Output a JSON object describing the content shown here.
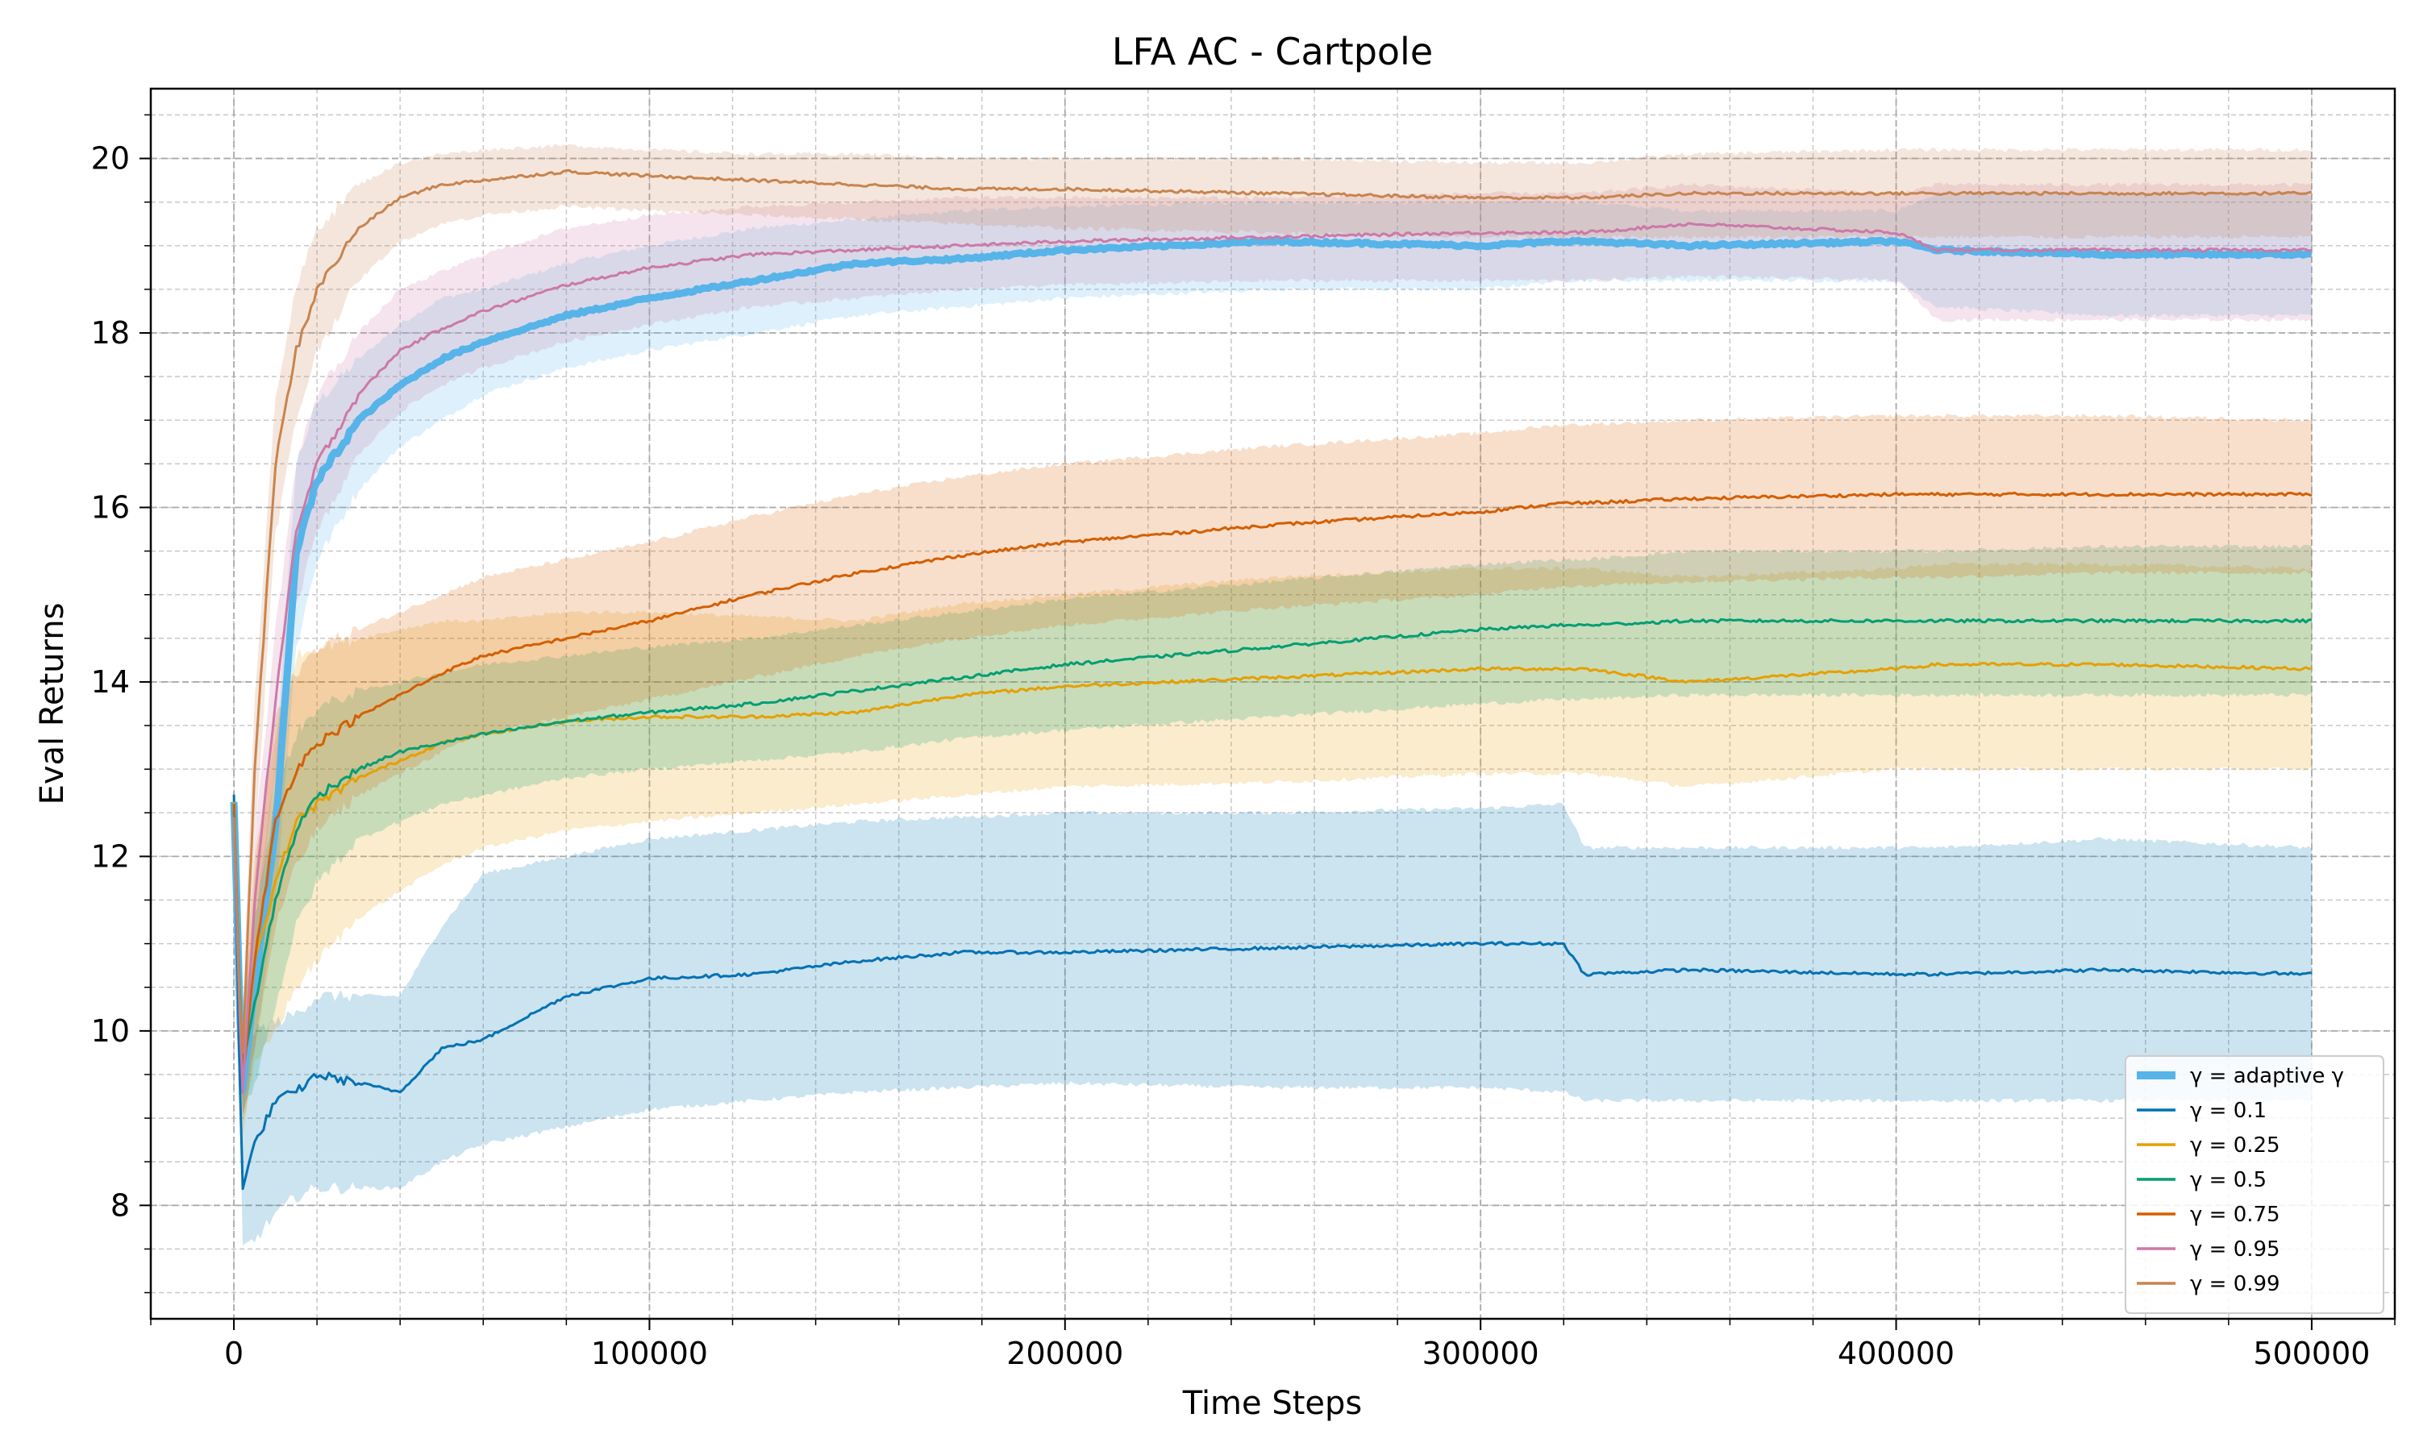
{
  "chart_data": {
    "type": "line",
    "title": "LFA AC - Cartpole",
    "xlabel": "Time Steps",
    "ylabel": "Eval Returns",
    "xlim": [
      -20000,
      520000
    ],
    "ylim": [
      6.7,
      20.8
    ],
    "xticks": [
      0,
      100000,
      200000,
      300000,
      400000,
      500000
    ],
    "xtick_labels": [
      "0",
      "100000",
      "200000",
      "300000",
      "400000",
      "500000"
    ],
    "yticks": [
      8,
      10,
      12,
      14,
      16,
      18,
      20
    ],
    "ytick_labels": [
      "8",
      "10",
      "12",
      "14",
      "16",
      "18",
      "20"
    ],
    "grid": true,
    "legend_position": "lower-right",
    "x": [
      0,
      2000,
      5000,
      10000,
      15000,
      20000,
      30000,
      40000,
      50000,
      60000,
      80000,
      100000,
      125000,
      150000,
      175000,
      200000,
      250000,
      300000,
      320000,
      325000,
      350000,
      400000,
      410000,
      450000,
      500000
    ],
    "series": [
      {
        "name": "γ = adaptive γ",
        "color": "#56b4e9",
        "emphasis": true,
        "values": [
          12.6,
          9.3,
          10.5,
          12.3,
          15.5,
          16.3,
          17.0,
          17.4,
          17.7,
          17.9,
          18.2,
          18.4,
          18.6,
          18.8,
          18.85,
          18.95,
          19.05,
          19.0,
          19.05,
          19.05,
          19.0,
          19.05,
          18.95,
          18.9,
          18.9
        ],
        "lower": [
          12.3,
          9.0,
          9.8,
          11.5,
          14.4,
          15.4,
          16.2,
          16.7,
          17.0,
          17.3,
          17.6,
          17.8,
          18.0,
          18.2,
          18.3,
          18.4,
          18.5,
          18.5,
          18.6,
          18.6,
          18.6,
          18.6,
          18.3,
          18.2,
          18.2
        ],
        "upper": [
          12.9,
          9.6,
          11.2,
          13.1,
          16.5,
          17.2,
          17.7,
          18.1,
          18.4,
          18.5,
          18.8,
          19.0,
          19.2,
          19.3,
          19.4,
          19.45,
          19.5,
          19.5,
          19.5,
          19.5,
          19.4,
          19.4,
          19.6,
          19.6,
          19.6
        ]
      },
      {
        "name": "γ = 0.1",
        "color": "#0072b2",
        "values": [
          12.7,
          8.2,
          8.7,
          9.2,
          9.3,
          9.5,
          9.4,
          9.3,
          9.8,
          9.9,
          10.4,
          10.6,
          10.65,
          10.8,
          10.9,
          10.9,
          10.95,
          11.0,
          11.0,
          10.65,
          10.7,
          10.65,
          10.65,
          10.7,
          10.65
        ],
        "lower": [
          12.5,
          7.5,
          7.6,
          7.9,
          8.1,
          8.2,
          8.2,
          8.2,
          8.5,
          8.7,
          8.9,
          9.1,
          9.2,
          9.3,
          9.35,
          9.4,
          9.35,
          9.35,
          9.3,
          9.2,
          9.2,
          9.2,
          9.2,
          9.2,
          9.2
        ],
        "upper": [
          12.9,
          9.5,
          10.0,
          10.1,
          10.2,
          10.4,
          10.4,
          10.4,
          11.2,
          11.8,
          12.0,
          12.2,
          12.3,
          12.4,
          12.45,
          12.5,
          12.5,
          12.55,
          12.6,
          12.1,
          12.1,
          12.1,
          12.1,
          12.2,
          12.1
        ]
      },
      {
        "name": "γ = 0.25",
        "color": "#e69f00",
        "values": [
          12.6,
          9.5,
          10.8,
          11.7,
          12.4,
          12.6,
          12.9,
          13.1,
          13.3,
          13.4,
          13.55,
          13.6,
          13.6,
          13.65,
          13.85,
          13.95,
          14.05,
          14.15,
          14.15,
          14.15,
          14.0,
          14.15,
          14.2,
          14.2,
          14.15
        ],
        "lower": [
          12.4,
          8.8,
          9.6,
          10.0,
          10.5,
          10.8,
          11.3,
          11.6,
          11.9,
          12.1,
          12.3,
          12.4,
          12.5,
          12.6,
          12.7,
          12.8,
          12.85,
          12.95,
          12.95,
          12.95,
          12.8,
          13.0,
          13.0,
          13.0,
          13.0
        ],
        "upper": [
          12.8,
          10.2,
          12.0,
          13.4,
          14.3,
          14.4,
          14.5,
          14.6,
          14.7,
          14.7,
          14.8,
          14.8,
          14.75,
          14.7,
          14.9,
          15.0,
          15.2,
          15.3,
          15.3,
          15.3,
          15.2,
          15.3,
          15.35,
          15.35,
          15.3
        ]
      },
      {
        "name": "γ = 0.5",
        "color": "#009e73",
        "values": [
          12.5,
          9.6,
          10.3,
          11.5,
          12.3,
          12.7,
          13.0,
          13.2,
          13.3,
          13.4,
          13.55,
          13.65,
          13.75,
          13.9,
          14.05,
          14.2,
          14.4,
          14.6,
          14.65,
          14.65,
          14.7,
          14.7,
          14.7,
          14.7,
          14.7
        ],
        "lower": [
          12.3,
          9.1,
          9.4,
          10.3,
          11.2,
          11.7,
          12.2,
          12.4,
          12.6,
          12.7,
          12.9,
          13.0,
          13.1,
          13.2,
          13.35,
          13.45,
          13.6,
          13.75,
          13.8,
          13.8,
          13.85,
          13.85,
          13.85,
          13.85,
          13.85
        ],
        "upper": [
          12.7,
          10.1,
          11.3,
          12.7,
          13.4,
          13.7,
          13.9,
          14.0,
          14.1,
          14.2,
          14.3,
          14.4,
          14.5,
          14.65,
          14.8,
          14.95,
          15.15,
          15.35,
          15.4,
          15.4,
          15.5,
          15.5,
          15.5,
          15.55,
          15.55
        ]
      },
      {
        "name": "γ = 0.75",
        "color": "#d55e00",
        "values": [
          12.6,
          9.4,
          10.8,
          12.4,
          13.0,
          13.3,
          13.6,
          13.85,
          14.1,
          14.3,
          14.5,
          14.7,
          15.0,
          15.25,
          15.45,
          15.6,
          15.8,
          15.95,
          16.05,
          16.05,
          16.1,
          16.15,
          16.15,
          16.15,
          16.15
        ],
        "lower": [
          12.4,
          8.9,
          9.8,
          11.2,
          11.9,
          12.3,
          12.7,
          12.95,
          13.2,
          13.4,
          13.6,
          13.8,
          14.05,
          14.3,
          14.5,
          14.65,
          14.85,
          15.0,
          15.1,
          15.1,
          15.15,
          15.2,
          15.2,
          15.25,
          15.25
        ],
        "upper": [
          12.8,
          9.9,
          11.8,
          13.6,
          14.1,
          14.4,
          14.6,
          14.8,
          15.0,
          15.2,
          15.4,
          15.6,
          15.9,
          16.15,
          16.35,
          16.5,
          16.7,
          16.85,
          16.95,
          16.95,
          17.0,
          17.05,
          17.05,
          17.05,
          17.0
        ]
      },
      {
        "name": "γ = 0.95",
        "color": "#cc79a7",
        "values": [
          12.5,
          9.2,
          11.5,
          13.8,
          15.7,
          16.5,
          17.3,
          17.8,
          18.05,
          18.25,
          18.55,
          18.75,
          18.9,
          18.95,
          19.0,
          19.05,
          19.1,
          19.15,
          19.15,
          19.15,
          19.25,
          19.15,
          18.95,
          18.95,
          18.95
        ],
        "lower": [
          12.3,
          8.9,
          10.8,
          13.0,
          14.9,
          15.7,
          16.6,
          17.1,
          17.4,
          17.6,
          17.9,
          18.1,
          18.3,
          18.4,
          18.5,
          18.55,
          18.6,
          18.6,
          18.6,
          18.6,
          18.65,
          18.6,
          18.15,
          18.15,
          18.15
        ],
        "upper": [
          12.7,
          9.5,
          12.2,
          14.6,
          16.5,
          17.3,
          18.0,
          18.5,
          18.7,
          18.9,
          19.2,
          19.35,
          19.45,
          19.5,
          19.55,
          19.55,
          19.55,
          19.6,
          19.6,
          19.6,
          19.7,
          19.6,
          19.7,
          19.7,
          19.7
        ]
      },
      {
        "name": "γ = 0.99",
        "color": "#c8844e",
        "values": [
          12.4,
          9.6,
          13.0,
          16.5,
          17.8,
          18.5,
          19.2,
          19.55,
          19.7,
          19.75,
          19.85,
          19.8,
          19.75,
          19.7,
          19.65,
          19.65,
          19.6,
          19.55,
          19.55,
          19.55,
          19.6,
          19.6,
          19.6,
          19.6,
          19.6
        ],
        "lower": [
          12.2,
          9.2,
          12.2,
          15.7,
          17.0,
          17.8,
          18.6,
          19.05,
          19.25,
          19.35,
          19.45,
          19.4,
          19.35,
          19.3,
          19.25,
          19.2,
          19.15,
          19.1,
          19.1,
          19.1,
          19.1,
          19.1,
          19.1,
          19.1,
          19.1
        ],
        "upper": [
          12.6,
          10.0,
          13.8,
          17.3,
          18.5,
          19.2,
          19.7,
          19.95,
          20.05,
          20.1,
          20.15,
          20.1,
          20.05,
          20.05,
          20.0,
          20.0,
          20.0,
          19.95,
          19.95,
          19.95,
          20.05,
          20.1,
          20.1,
          20.1,
          20.1
        ]
      }
    ]
  }
}
